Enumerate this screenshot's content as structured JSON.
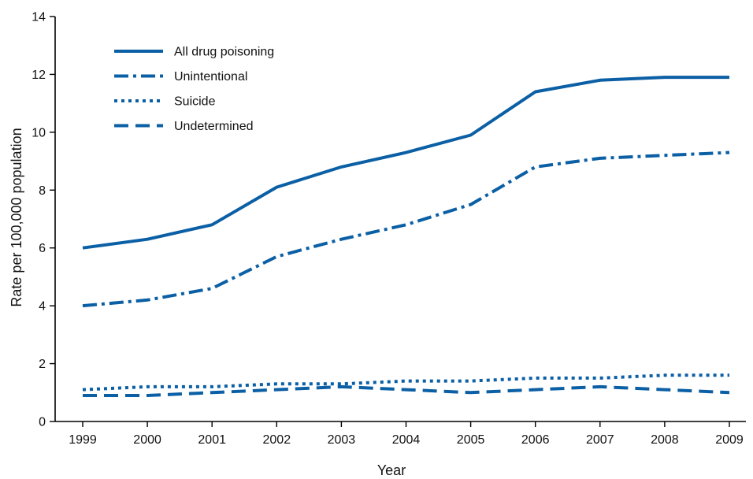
{
  "chart_data": {
    "type": "line",
    "xlabel": "Year",
    "ylabel": "Rate per 100,000 population",
    "x": [
      1999,
      2000,
      2001,
      2002,
      2003,
      2004,
      2005,
      2006,
      2007,
      2008,
      2009
    ],
    "x_ticks": [
      "1999",
      "2000",
      "2001",
      "2002",
      "2003",
      "2004",
      "2005",
      "2006",
      "2007",
      "2008",
      "2009"
    ],
    "ylim": [
      0,
      14
    ],
    "y_ticks": [
      "0",
      "2",
      "4",
      "6",
      "8",
      "10",
      "12",
      "14"
    ],
    "grid": false,
    "legend_position": "top-left",
    "line_color": "#0b5fa5",
    "series": [
      {
        "name": "All drug poisoning",
        "style": "solid",
        "values": [
          6.0,
          6.3,
          6.8,
          8.1,
          8.8,
          9.3,
          9.9,
          11.4,
          11.8,
          11.9,
          11.9
        ]
      },
      {
        "name": "Unintentional",
        "style": "dash-dot",
        "values": [
          4.0,
          4.2,
          4.6,
          5.7,
          6.3,
          6.8,
          7.5,
          8.8,
          9.1,
          9.2,
          9.3
        ]
      },
      {
        "name": "Suicide",
        "style": "dotted",
        "values": [
          1.1,
          1.2,
          1.2,
          1.3,
          1.3,
          1.4,
          1.4,
          1.5,
          1.5,
          1.6,
          1.6
        ]
      },
      {
        "name": "Undetermined",
        "style": "dashed",
        "values": [
          0.9,
          0.9,
          1.0,
          1.1,
          1.2,
          1.1,
          1.0,
          1.1,
          1.2,
          1.1,
          1.0
        ]
      }
    ]
  }
}
